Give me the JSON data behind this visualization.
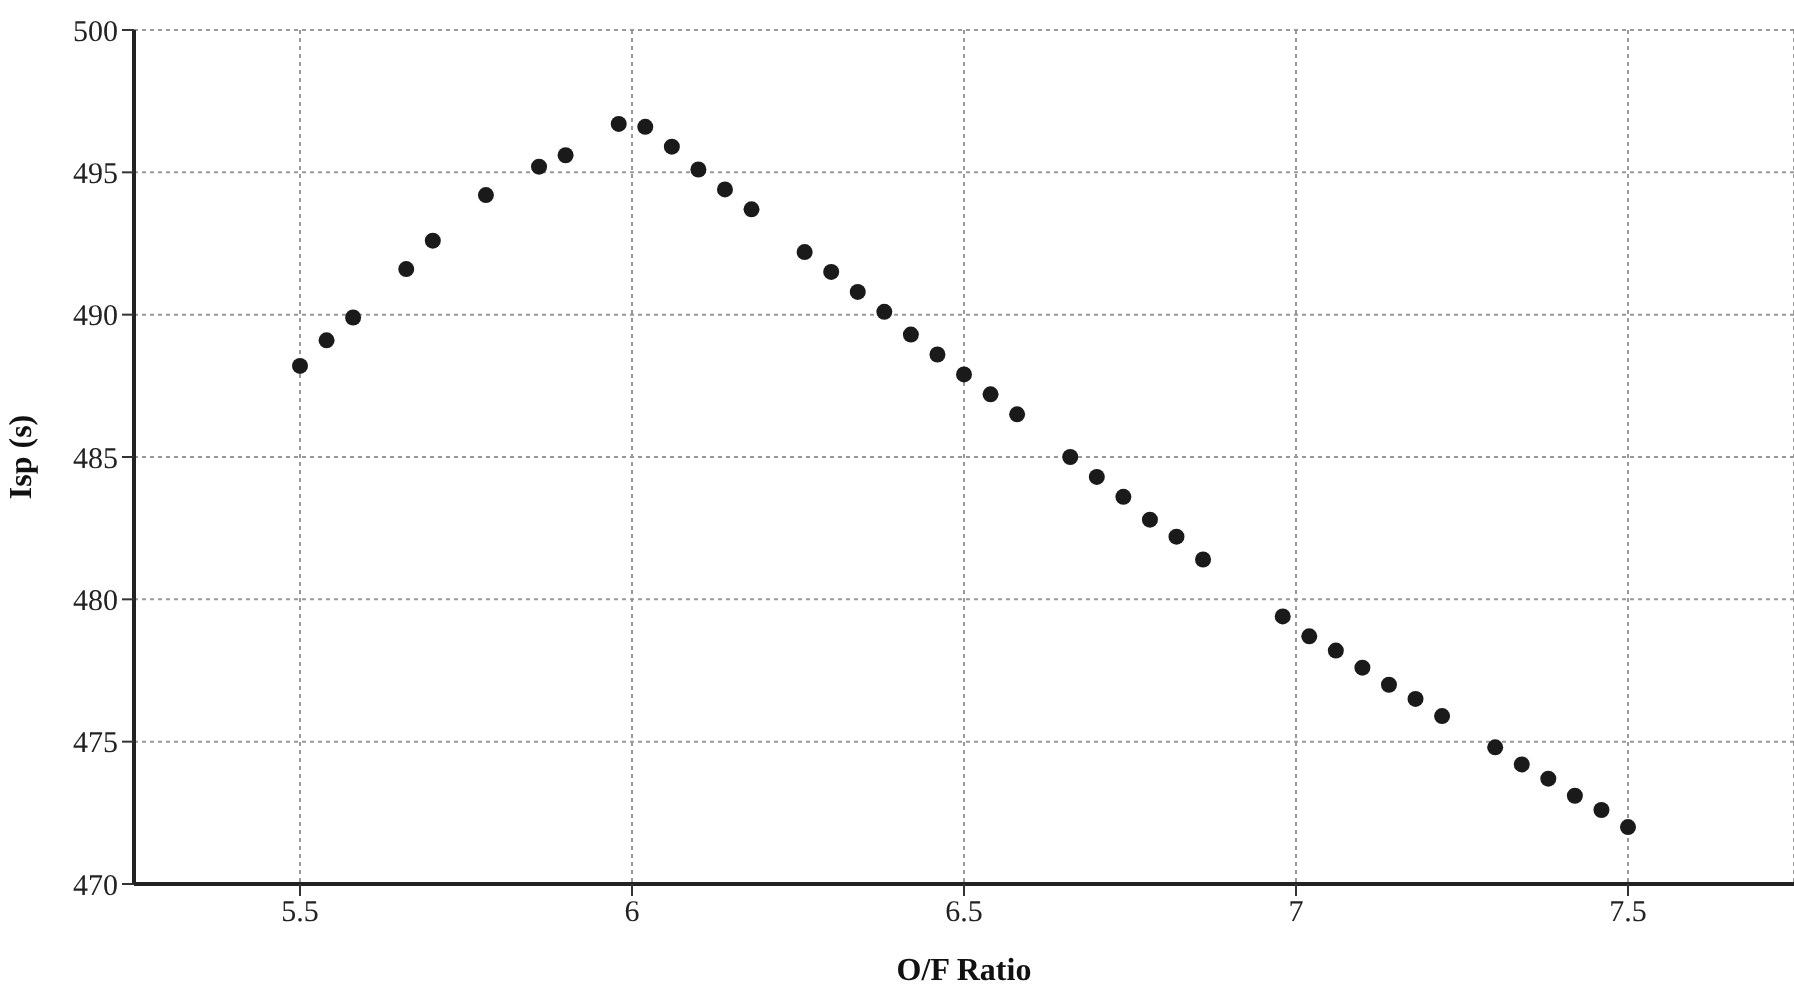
{
  "chart_data": {
    "type": "scatter",
    "xlabel": "O/F Ratio",
    "ylabel": "Isp (s)",
    "marker": "circle",
    "grid": true,
    "xlim": [
      5.25,
      7.75
    ],
    "xticks": [
      5.5,
      6,
      6.5,
      7,
      7.5
    ],
    "ylim": [
      470,
      500
    ],
    "yticks": [
      470,
      475,
      480,
      485,
      490,
      495,
      500
    ],
    "x": [
      5.5,
      5.54,
      5.58,
      5.66,
      5.7,
      5.78,
      5.86,
      5.9,
      5.98,
      6.02,
      6.06,
      6.1,
      6.14,
      6.18,
      6.26,
      6.3,
      6.34,
      6.38,
      6.42,
      6.46,
      6.5,
      6.54,
      6.58,
      6.66,
      6.7,
      6.74,
      6.78,
      6.82,
      6.86,
      6.98,
      7.02,
      7.06,
      7.1,
      7.14,
      7.18,
      7.22,
      7.3,
      7.34,
      7.38,
      7.42,
      7.46,
      7.5
    ],
    "series": [
      {
        "color": "#1a1a1a",
        "values": [
          488.2,
          489.1,
          489.9,
          491.6,
          492.6,
          494.2,
          495.2,
          495.6,
          496.7,
          496.6,
          495.9,
          495.1,
          494.4,
          493.7,
          492.2,
          491.5,
          490.8,
          490.1,
          489.3,
          488.6,
          487.9,
          487.2,
          486.5,
          485.0,
          484.3,
          483.6,
          482.8,
          482.2,
          481.4,
          479.4,
          478.7,
          478.2,
          477.6,
          477.0,
          476.5,
          475.9,
          474.8,
          474.2,
          473.7,
          473.1,
          472.6,
          472.0
        ]
      }
    ]
  }
}
